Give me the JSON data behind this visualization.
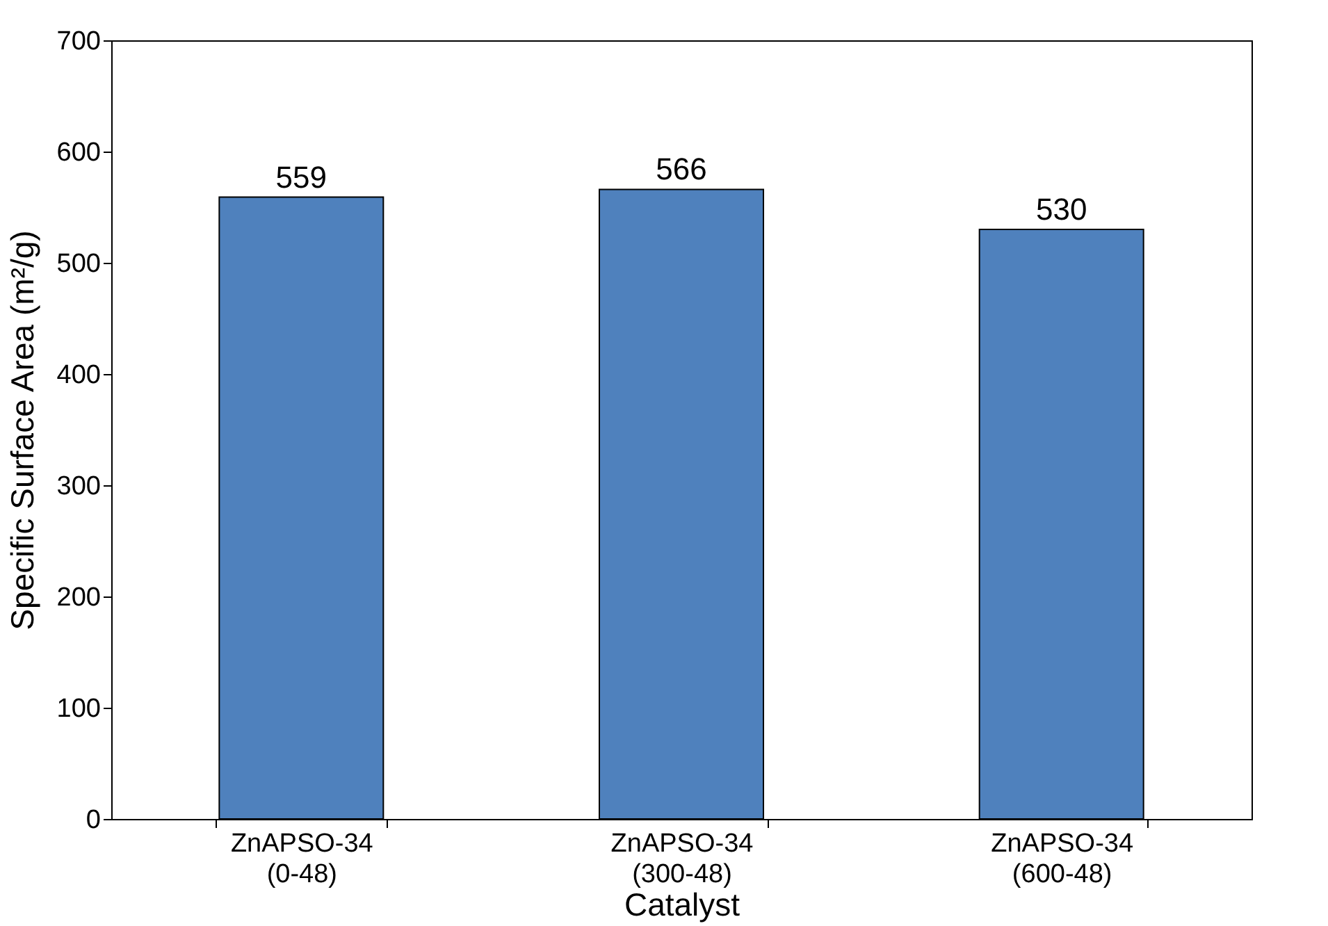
{
  "chart_data": {
    "type": "bar",
    "xlabel": "Catalyst",
    "ylabel": "Specific Surface Area (m²/g)",
    "categories": [
      "ZnAPSO-34 (0-48)",
      "ZnAPSO-34 (300-48)",
      "ZnAPSO-34 (600-48)"
    ],
    "values": [
      559,
      566,
      530
    ],
    "color": "#4f81bd",
    "ylim": [
      0,
      700
    ],
    "yticks": [
      0,
      100,
      200,
      300,
      400,
      500,
      600,
      700
    ],
    "grid": false,
    "data_labels": true
  }
}
